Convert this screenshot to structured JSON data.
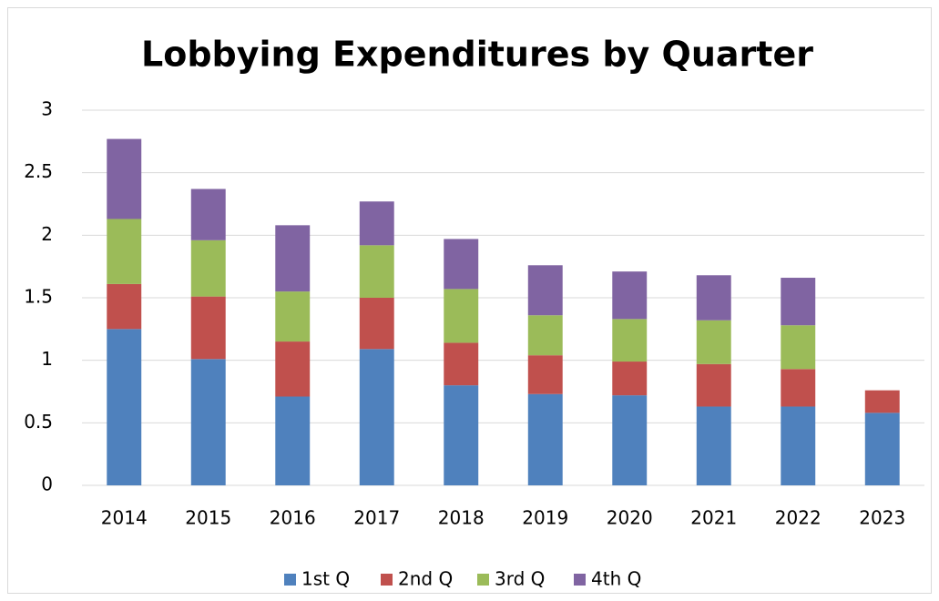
{
  "chart_data": {
    "type": "stacked_bar",
    "title": "Lobbying Expenditures by Quarter",
    "categories": [
      "2014",
      "2015",
      "2016",
      "2017",
      "2018",
      "2019",
      "2020",
      "2021",
      "2022",
      "2023"
    ],
    "series": [
      {
        "name": "1st Q",
        "color": "#4f81bd",
        "values": [
          1.25,
          1.01,
          0.71,
          1.09,
          0.8,
          0.73,
          0.72,
          0.63,
          0.63,
          0.58
        ]
      },
      {
        "name": "2nd Q",
        "color": "#c0504d",
        "values": [
          0.36,
          0.5,
          0.44,
          0.41,
          0.34,
          0.31,
          0.27,
          0.34,
          0.3,
          0.18
        ]
      },
      {
        "name": "3rd Q",
        "color": "#9bbb59",
        "values": [
          0.52,
          0.45,
          0.4,
          0.42,
          0.43,
          0.32,
          0.34,
          0.35,
          0.35,
          null
        ]
      },
      {
        "name": "4th Q",
        "color": "#8064a2",
        "values": [
          0.64,
          0.41,
          0.53,
          0.35,
          0.4,
          0.4,
          0.38,
          0.36,
          0.38,
          null
        ]
      }
    ],
    "ylim": [
      0,
      3
    ],
    "yticks": [
      0,
      0.5,
      1,
      1.5,
      2,
      2.5,
      3
    ],
    "grid": true,
    "legend": "bottom"
  }
}
